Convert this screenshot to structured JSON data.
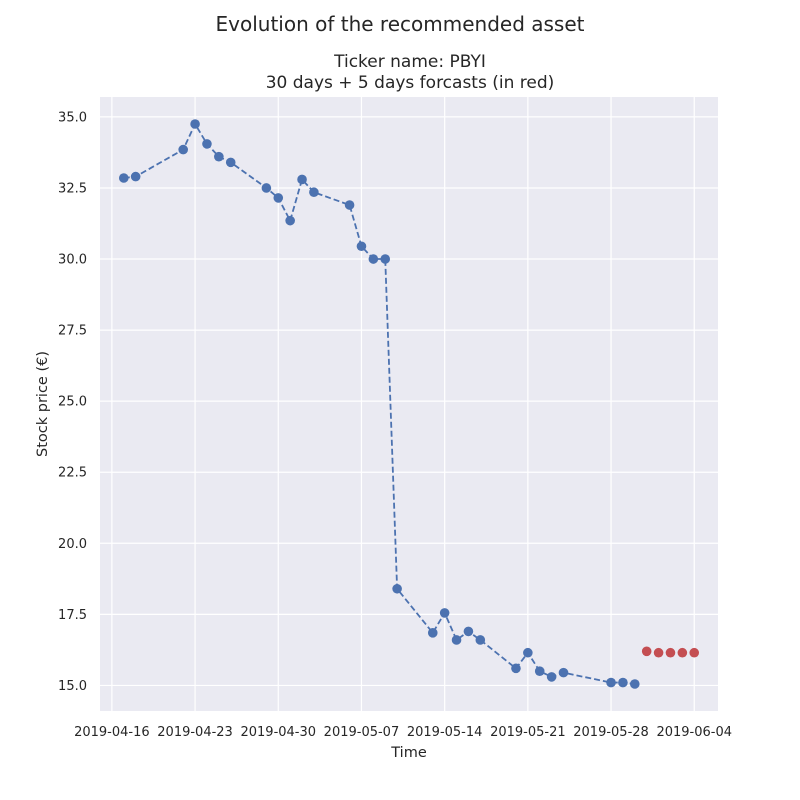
{
  "chart_data": {
    "type": "line",
    "suptitle": "Evolution of the recommended asset",
    "title_line1": "Ticker name: PBYI",
    "title_line2": "30 days + 5 days forcasts (in red)",
    "xlabel": "Time",
    "ylabel": "Stock price (€)",
    "xlim": [
      "2019-04-15",
      "2019-06-06"
    ],
    "ylim": [
      14.1,
      35.7
    ],
    "x_ticks": [
      "2019-04-16",
      "2019-04-23",
      "2019-04-30",
      "2019-05-07",
      "2019-05-14",
      "2019-05-21",
      "2019-05-28",
      "2019-06-04"
    ],
    "y_ticks": [
      "15.0",
      "17.5",
      "20.0",
      "22.5",
      "25.0",
      "27.5",
      "30.0",
      "32.5",
      "35.0"
    ],
    "grid": true,
    "series": [
      {
        "color": "#4c72b0",
        "line_style": "dashed",
        "marker": "circle",
        "x": [
          "2019-04-17",
          "2019-04-18",
          "2019-04-22",
          "2019-04-23",
          "2019-04-24",
          "2019-04-25",
          "2019-04-26",
          "2019-04-29",
          "2019-04-30",
          "2019-05-01",
          "2019-05-02",
          "2019-05-03",
          "2019-05-06",
          "2019-05-07",
          "2019-05-08",
          "2019-05-09",
          "2019-05-10",
          "2019-05-13",
          "2019-05-14",
          "2019-05-15",
          "2019-05-16",
          "2019-05-17",
          "2019-05-20",
          "2019-05-21",
          "2019-05-22",
          "2019-05-23",
          "2019-05-24",
          "2019-05-28",
          "2019-05-29",
          "2019-05-30"
        ],
        "y": [
          32.85,
          32.9,
          33.85,
          34.75,
          34.05,
          33.6,
          33.4,
          32.5,
          32.15,
          31.35,
          32.8,
          32.35,
          31.9,
          30.45,
          30.0,
          30.0,
          18.4,
          16.85,
          17.55,
          16.6,
          16.9,
          16.6,
          15.6,
          16.15,
          15.5,
          15.3,
          15.45,
          15.1,
          15.1,
          15.05
        ]
      },
      {
        "color": "#c44e52",
        "line_style": "none",
        "marker": "circle",
        "x": [
          "2019-05-31",
          "2019-06-01",
          "2019-06-02",
          "2019-06-03",
          "2019-06-04"
        ],
        "y": [
          16.2,
          16.15,
          16.15,
          16.15,
          16.15
        ]
      }
    ]
  }
}
